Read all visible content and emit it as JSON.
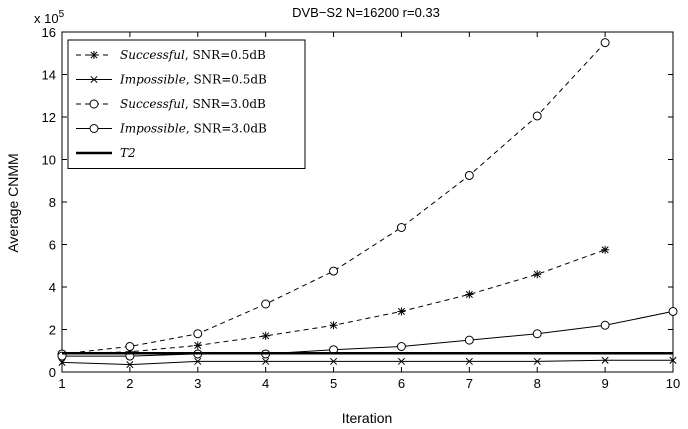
{
  "chart_data": {
    "type": "line",
    "title": "DVB−S2 N=16200 r=0.33",
    "xlabel": "Iteration",
    "ylabel": "Average CNMM",
    "y_exponent_label": "x 10",
    "y_exponent_power": "5",
    "xlim": [
      1,
      10
    ],
    "ylim": [
      0,
      16
    ],
    "x_ticks": [
      1,
      2,
      3,
      4,
      5,
      6,
      7,
      8,
      9,
      10
    ],
    "y_ticks": [
      0,
      2,
      4,
      6,
      8,
      10,
      12,
      14,
      16
    ],
    "grid": false,
    "legend_position": "top-left",
    "series": [
      {
        "name_emph": "Successful",
        "name_rest": ", SNR=0.5dB",
        "marker": "star",
        "line_style": "dashed",
        "x": [
          1,
          2,
          3,
          4,
          5,
          6,
          7,
          8,
          9
        ],
        "y": [
          0.85,
          0.95,
          1.25,
          1.7,
          2.2,
          2.85,
          3.65,
          4.6,
          5.75
        ]
      },
      {
        "name_emph": "Impossible",
        "name_rest": ", SNR=0.5dB",
        "marker": "x",
        "line_style": "solid",
        "x": [
          1,
          2,
          3,
          4,
          5,
          6,
          7,
          8,
          9,
          10
        ],
        "y": [
          0.45,
          0.35,
          0.5,
          0.5,
          0.5,
          0.5,
          0.5,
          0.5,
          0.55,
          0.55
        ]
      },
      {
        "name_emph": "Successful",
        "name_rest": ", SNR=3.0dB",
        "marker": "circle",
        "line_style": "dashed",
        "x": [
          1,
          2,
          3,
          4,
          5,
          6,
          7,
          8,
          9
        ],
        "y": [
          0.85,
          1.2,
          1.8,
          3.2,
          4.75,
          6.8,
          9.25,
          12.05,
          15.5
        ]
      },
      {
        "name_emph": "Impossible",
        "name_rest": ", SNR=3.0dB",
        "marker": "circle",
        "line_style": "solid",
        "x": [
          1,
          2,
          3,
          4,
          5,
          6,
          7,
          8,
          9,
          10
        ],
        "y": [
          0.75,
          0.75,
          0.85,
          0.85,
          1.05,
          1.2,
          1.5,
          1.8,
          2.2,
          2.85
        ]
      },
      {
        "name_emph": "T2",
        "name_rest": "",
        "marker": "none",
        "line_style": "thick",
        "x": [
          1,
          10
        ],
        "y": [
          0.88,
          0.88
        ]
      }
    ]
  }
}
